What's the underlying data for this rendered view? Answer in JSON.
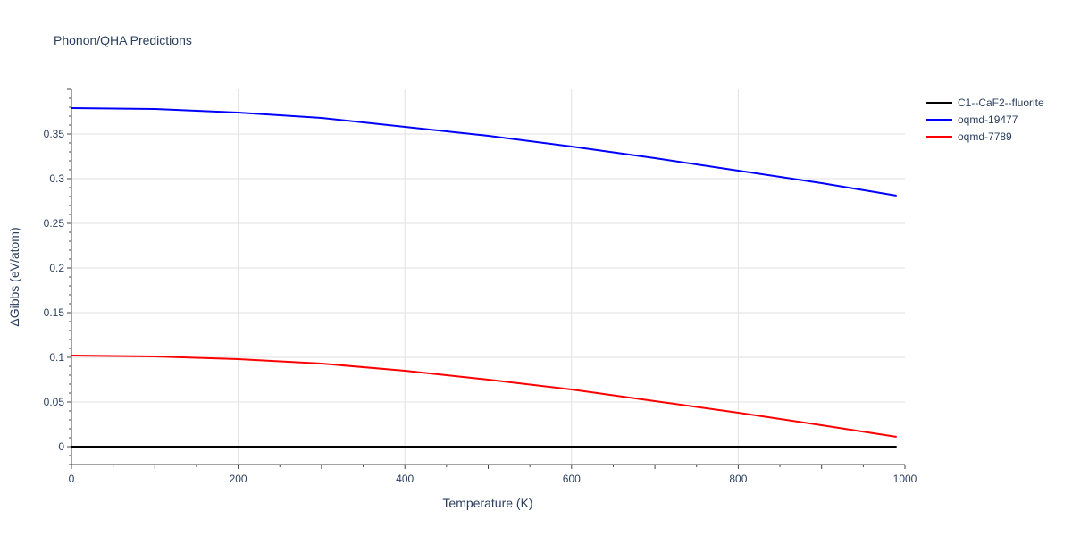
{
  "chart_data": {
    "type": "line",
    "title": "Phonon/QHA Predictions",
    "xlabel": "Temperature (K)",
    "ylabel": "ΔGibbs (eV/atom)",
    "xlim": [
      0,
      1000
    ],
    "ylim": [
      -0.02,
      0.4
    ],
    "x_ticks": [
      0,
      200,
      400,
      600,
      800,
      1000
    ],
    "x_tick_labels": [
      "0",
      "200",
      "400",
      "600",
      "800",
      "1000"
    ],
    "y_ticks": [
      0,
      0.05,
      0.1,
      0.15,
      0.2,
      0.25,
      0.3,
      0.35
    ],
    "y_tick_labels": [
      "0",
      "0.05",
      "0.1",
      "0.15",
      "0.2",
      "0.25",
      "0.3",
      "0.35"
    ],
    "grid": true,
    "legend_position": "top-right outside",
    "series": [
      {
        "name": "C1--CaF2--fluorite",
        "color": "#000000",
        "x": [
          0,
          100,
          200,
          300,
          400,
          500,
          600,
          700,
          800,
          900,
          990
        ],
        "y": [
          0,
          0,
          0,
          0,
          0,
          0,
          0,
          0,
          0,
          0,
          0
        ]
      },
      {
        "name": "oqmd-19477",
        "color": "#0000ff",
        "x": [
          0,
          100,
          200,
          300,
          400,
          500,
          600,
          700,
          800,
          900,
          990
        ],
        "y": [
          0.379,
          0.378,
          0.374,
          0.368,
          0.358,
          0.348,
          0.336,
          0.323,
          0.309,
          0.295,
          0.281
        ]
      },
      {
        "name": "oqmd-7789",
        "color": "#ff0000",
        "x": [
          0,
          100,
          200,
          300,
          400,
          500,
          600,
          700,
          800,
          900,
          990
        ],
        "y": [
          0.102,
          0.101,
          0.098,
          0.093,
          0.085,
          0.075,
          0.064,
          0.051,
          0.038,
          0.024,
          0.011
        ]
      }
    ]
  }
}
